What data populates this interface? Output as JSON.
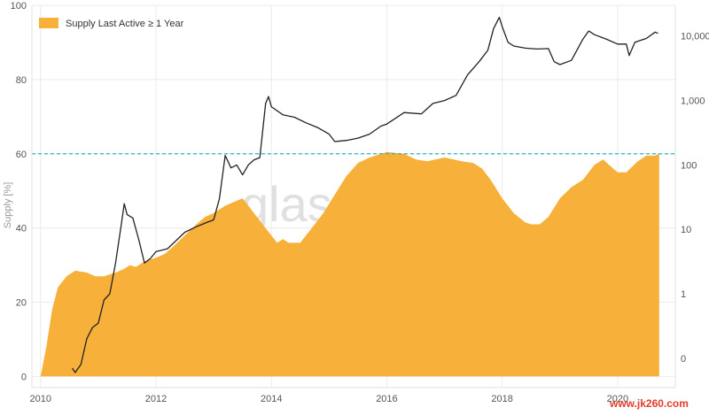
{
  "chart_data": {
    "type": "area",
    "legend": {
      "label": "Supply Last Active ≥ 1 Year",
      "placement": "top-left"
    },
    "ylabel": "Supply [%]",
    "xlabel": "",
    "xlim": [
      2009.85,
      2021.0
    ],
    "ylim": [
      -3,
      100
    ],
    "x_ticks": [
      "2010",
      "2012",
      "2014",
      "2016",
      "2018",
      "2020"
    ],
    "y_ticks": [
      "0",
      "20",
      "40",
      "60",
      "80",
      "100"
    ],
    "right_axis": {
      "scale": "log",
      "ylim": [
        0.035,
        30000
      ],
      "ticks": [
        {
          "label": "0",
          "value": 0.1
        },
        {
          "label": "1",
          "value": 1
        },
        {
          "label": "10",
          "value": 10
        },
        {
          "label": "100",
          "value": 100
        },
        {
          "label": "1,000",
          "value": 1000
        },
        {
          "label": "10,000",
          "value": 10000
        }
      ]
    },
    "reference_line": {
      "y": 60,
      "color": "#2bb5c9",
      "style": "dashed"
    },
    "series": [
      {
        "name": "Supply Last Active ≥ 1 Year",
        "kind": "area",
        "axis": "left",
        "color": "#f7b13b",
        "x": [
          2010.0,
          2010.1,
          2010.2,
          2010.3,
          2010.45,
          2010.6,
          2010.8,
          2010.95,
          2011.1,
          2011.3,
          2011.45,
          2011.55,
          2011.65,
          2011.8,
          2012.0,
          2012.15,
          2012.3,
          2012.5,
          2012.7,
          2012.85,
          2013.0,
          2013.2,
          2013.35,
          2013.5,
          2013.6,
          2013.75,
          2013.9,
          2014.0,
          2014.1,
          2014.2,
          2014.3,
          2014.5,
          2014.7,
          2014.9,
          2015.1,
          2015.3,
          2015.5,
          2015.7,
          2016.0,
          2016.3,
          2016.5,
          2016.7,
          2017.0,
          2017.3,
          2017.5,
          2017.65,
          2017.8,
          2018.0,
          2018.2,
          2018.4,
          2018.5,
          2018.65,
          2018.8,
          2019.0,
          2019.2,
          2019.4,
          2019.6,
          2019.75,
          2019.85,
          2020.0,
          2020.15,
          2020.35,
          2020.5,
          2020.65,
          2020.72
        ],
        "values": [
          0,
          8,
          18,
          24,
          27,
          28.5,
          28,
          27,
          27,
          28,
          29,
          30,
          29.5,
          31,
          32,
          33,
          35,
          38,
          41,
          43,
          44,
          46,
          47,
          48,
          46,
          43,
          40,
          38,
          36,
          37,
          36,
          36,
          40,
          44,
          49,
          54,
          57.5,
          59,
          60.5,
          60,
          58.5,
          58,
          59,
          58,
          57.5,
          56,
          53,
          48,
          44,
          41.5,
          41,
          41,
          43,
          48,
          51,
          53,
          57,
          58.5,
          57,
          55,
          55,
          58,
          59.5,
          59.5,
          60
        ]
      },
      {
        "name": "Price",
        "kind": "line",
        "axis": "right",
        "color": "#222222",
        "x": [
          2010.55,
          2010.6,
          2010.7,
          2010.8,
          2010.9,
          2011.0,
          2011.1,
          2011.2,
          2011.3,
          2011.4,
          2011.45,
          2011.5,
          2011.6,
          2011.7,
          2011.8,
          2011.9,
          2012.0,
          2012.2,
          2012.5,
          2012.7,
          2012.9,
          2013.0,
          2013.1,
          2013.2,
          2013.3,
          2013.4,
          2013.5,
          2013.6,
          2013.7,
          2013.8,
          2013.9,
          2013.95,
          2014.0,
          2014.2,
          2014.4,
          2014.6,
          2014.8,
          2015.0,
          2015.1,
          2015.3,
          2015.5,
          2015.7,
          2015.9,
          2016.0,
          2016.3,
          2016.6,
          2016.8,
          2017.0,
          2017.2,
          2017.4,
          2017.6,
          2017.75,
          2017.85,
          2017.95,
          2018.0,
          2018.1,
          2018.2,
          2018.4,
          2018.6,
          2018.8,
          2018.9,
          2019.0,
          2019.2,
          2019.4,
          2019.5,
          2019.6,
          2019.8,
          2020.0,
          2020.15,
          2020.2,
          2020.3,
          2020.5,
          2020.65,
          2020.7
        ],
        "values": [
          0.07,
          0.06,
          0.08,
          0.2,
          0.3,
          0.35,
          0.8,
          1.0,
          3.0,
          12,
          25,
          17,
          15,
          7,
          3,
          3.5,
          4.5,
          5,
          9,
          11,
          13,
          14,
          30,
          140,
          90,
          100,
          70,
          100,
          120,
          130,
          900,
          1150,
          800,
          600,
          550,
          450,
          380,
          300,
          230,
          240,
          260,
          300,
          400,
          430,
          650,
          620,
          900,
          1000,
          1200,
          2500,
          4000,
          6000,
          13000,
          19500,
          14000,
          8000,
          7000,
          6500,
          6300,
          6400,
          4000,
          3600,
          4200,
          9000,
          12000,
          10500,
          9000,
          7500,
          7500,
          5000,
          8000,
          9200,
          11500,
          11000
        ]
      }
    ]
  },
  "watermark": "glassnode",
  "corner_text": "www.jk260.com"
}
